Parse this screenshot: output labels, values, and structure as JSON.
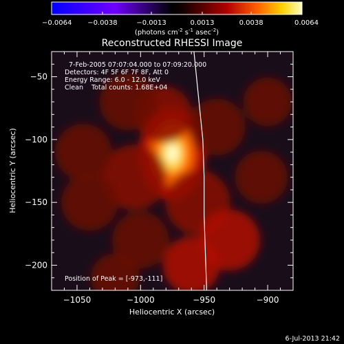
{
  "chart_data": {
    "type": "heatmap",
    "title": "Reconstructed RHESSI Image",
    "xlabel": "Heliocentric X (arcsec)",
    "ylabel": "Heliocentric Y (arcsec)",
    "xlim": [
      -1070,
      -880
    ],
    "ylim": [
      -220,
      -30
    ],
    "x_ticks": [
      -1050,
      -1000,
      -950,
      -900
    ],
    "y_ticks": [
      -50,
      -100,
      -150,
      -200
    ],
    "x_tick_labels": [
      "−1050",
      "−1000",
      "−950",
      "−900"
    ],
    "y_tick_labels": [
      "−50",
      "−100",
      "−150",
      "−200"
    ],
    "colorbar": {
      "min": -0.0064,
      "max": 0.0064,
      "ticks": [
        -0.0064,
        -0.0038,
        -0.0013,
        0.0013,
        0.0038,
        0.0064
      ],
      "tick_labels": [
        "−0.0064",
        "−0.0038",
        "−0.0013",
        "0.0013",
        "0.0038",
        "0.0064"
      ],
      "label": "(photons cm⁻² s⁻¹ asec⁻²)",
      "label_parts": {
        "a": "(photons cm",
        "b": "-2",
        "c": " s",
        "d": "-1",
        "e": " asec",
        "f": "-2",
        "g": ")"
      }
    },
    "annotations": [
      "7-Feb-2005 07:07:04.000 to 07:09:20.000",
      "Detectors: 4F 5F 6F 7F 8F, Att 0",
      "Energy Range: 6.0 - 12.0 keV",
      "Clean    Total counts: 1.68E+04"
    ],
    "peak_label": "Position of Peak = [-973,-111]",
    "peak": {
      "x": -973,
      "y": -111
    },
    "limb_curve": [
      [
        -958,
        -30
      ],
      [
        -955,
        -60
      ],
      [
        -953,
        -80
      ],
      [
        -951,
        -100
      ],
      [
        -950,
        -130
      ],
      [
        -950,
        -160
      ],
      [
        -949,
        -190
      ],
      [
        -948,
        -220
      ]
    ],
    "sources": [
      {
        "x": -975,
        "y": -111,
        "sigma": 10,
        "amplitude": 1.0
      },
      {
        "x": -982,
        "y": -80,
        "sigma": 14,
        "amplitude": 0.22
      },
      {
        "x": -1010,
        "y": -70,
        "sigma": 14,
        "amplitude": 0.18
      },
      {
        "x": -1005,
        "y": -130,
        "sigma": 16,
        "amplitude": 0.2
      },
      {
        "x": -955,
        "y": -150,
        "sigma": 16,
        "amplitude": 0.24
      },
      {
        "x": -930,
        "y": -180,
        "sigma": 15,
        "amplitude": 0.26
      },
      {
        "x": -960,
        "y": -200,
        "sigma": 14,
        "amplitude": 0.3
      },
      {
        "x": -1000,
        "y": -180,
        "sigma": 14,
        "amplitude": 0.18
      },
      {
        "x": -1040,
        "y": -150,
        "sigma": 14,
        "amplitude": 0.16
      },
      {
        "x": -1045,
        "y": -110,
        "sigma": 14,
        "amplitude": 0.12
      },
      {
        "x": -1020,
        "y": -210,
        "sigma": 12,
        "amplitude": 0.16
      },
      {
        "x": -940,
        "y": -90,
        "sigma": 14,
        "amplitude": 0.17
      },
      {
        "x": -905,
        "y": -130,
        "sigma": 13,
        "amplitude": 0.16
      },
      {
        "x": -900,
        "y": -70,
        "sigma": 12,
        "amplitude": 0.12
      }
    ]
  },
  "footer": {
    "timestamp": "6-Jul-2013 21:42"
  }
}
